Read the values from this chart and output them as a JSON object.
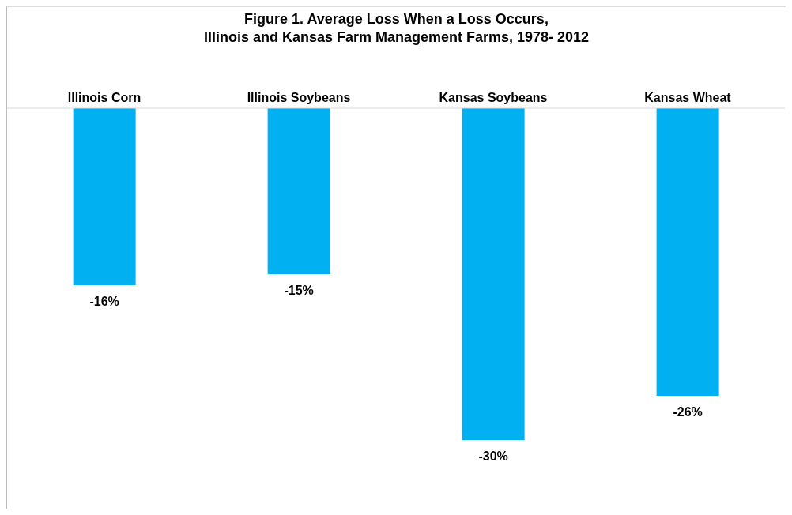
{
  "chart_data": {
    "type": "bar",
    "title": "Figure 1. Average Loss When a Loss Occurs,\nIllinois and Kansas Farm Management Farms, 1978- 2012",
    "categories": [
      "Illinois Corn",
      "Illinois Soybeans",
      "Kansas Soybeans",
      "Kansas Wheat"
    ],
    "values": [
      -16,
      -15,
      -30,
      -26
    ],
    "value_labels": [
      "-16%",
      "-15%",
      "-30%",
      "-26%"
    ],
    "color": "#00b0f0",
    "grid": false,
    "legend": false
  }
}
